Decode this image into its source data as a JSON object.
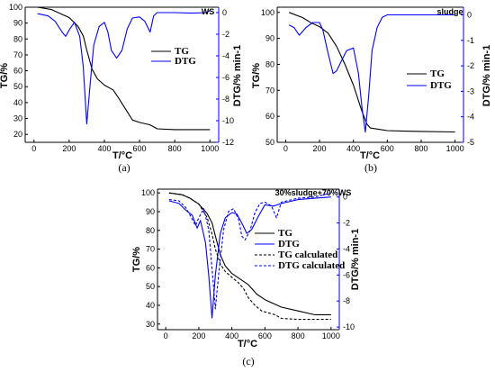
{
  "chart_data": [
    {
      "type": "line",
      "panel_label": "(a)",
      "annotation": "WS",
      "xlabel": "T/°C",
      "ylabel_left": "TG/%",
      "ylabel_right": "DTG/% min-1",
      "xlim": [
        -50,
        1050
      ],
      "ylim_left": [
        15,
        100
      ],
      "ylim_right": [
        -12,
        0.5
      ],
      "xticks": [
        0,
        200,
        400,
        600,
        800,
        1000
      ],
      "yticks_left": [
        20,
        30,
        40,
        50,
        60,
        70,
        80,
        90,
        100
      ],
      "yticks_right": [
        0,
        -2,
        -4,
        -6,
        -8,
        -10,
        -12
      ],
      "series": [
        {
          "name": "TG",
          "axis": "left",
          "color": "#000000",
          "dash": false,
          "x": [
            20,
            100,
            150,
            200,
            250,
            280,
            300,
            330,
            360,
            400,
            450,
            480,
            520,
            560,
            600,
            660,
            700,
            800,
            1000
          ],
          "y": [
            100,
            98.5,
            96,
            93.5,
            88,
            82,
            73,
            61,
            55,
            51,
            48,
            43,
            36,
            29,
            27.5,
            26,
            23.5,
            23,
            23
          ]
        },
        {
          "name": "DTG",
          "axis": "right",
          "color": "#0000ff",
          "dash": false,
          "x": [
            20,
            80,
            120,
            160,
            180,
            200,
            230,
            260,
            280,
            300,
            320,
            340,
            370,
            400,
            420,
            440,
            470,
            500,
            530,
            560,
            600,
            630,
            660,
            680,
            700,
            800,
            900,
            980,
            1000
          ],
          "y": [
            -0.1,
            -0.3,
            -0.8,
            -1.8,
            -2.2,
            -1.6,
            -0.9,
            -2.2,
            -5,
            -10.3,
            -6.5,
            -3,
            -1.3,
            -0.9,
            -1.8,
            -3.5,
            -4.2,
            -3.5,
            -1.5,
            -0.5,
            -0.4,
            -0.8,
            -1.8,
            -0.3,
            0,
            0,
            -0.05,
            0,
            0.2
          ]
        }
      ]
    },
    {
      "type": "line",
      "panel_label": "(b)",
      "annotation": "sludge",
      "xlabel": "T/°C",
      "ylabel_left": "TG/%",
      "ylabel_right": "DTG/% min-1",
      "xlim": [
        -50,
        1050
      ],
      "ylim_left": [
        50,
        102
      ],
      "ylim_right": [
        -5,
        0.3
      ],
      "xticks": [
        0,
        200,
        400,
        600,
        800,
        1000
      ],
      "yticks_left": [
        50,
        60,
        70,
        80,
        90,
        100
      ],
      "yticks_right": [
        0,
        -1,
        -2,
        -3,
        -4,
        -5
      ],
      "series": [
        {
          "name": "TG",
          "axis": "left",
          "color": "#000000",
          "dash": false,
          "x": [
            20,
            100,
            150,
            200,
            250,
            300,
            350,
            400,
            450,
            480,
            500,
            550,
            600,
            700,
            800,
            1000
          ],
          "y": [
            100,
            98,
            96,
            94.5,
            92,
            87,
            80,
            72,
            62,
            57,
            55.5,
            55,
            54.5,
            54.3,
            54.2,
            54
          ]
        },
        {
          "name": "DTG",
          "axis": "right",
          "color": "#0000ff",
          "dash": false,
          "x": [
            20,
            50,
            80,
            120,
            160,
            200,
            220,
            250,
            280,
            300,
            330,
            360,
            400,
            430,
            450,
            470,
            490,
            510,
            540,
            570,
            600,
            700,
            800,
            900,
            1000
          ],
          "y": [
            -0.4,
            -0.5,
            -0.8,
            -0.5,
            -0.3,
            -0.3,
            -0.6,
            -1.5,
            -2.3,
            -2.2,
            -1.8,
            -1.4,
            -1.3,
            -2.3,
            -3.6,
            -4.6,
            -3.2,
            -1.4,
            -0.5,
            -0.1,
            0,
            0,
            0,
            0,
            0
          ]
        }
      ]
    },
    {
      "type": "line",
      "panel_label": "(c)",
      "annotation": "30%sludge+70%WS",
      "xlabel": "T/°C",
      "ylabel_left": "TG/%",
      "ylabel_right": "DTG/% min-1",
      "xlim": [
        -50,
        1050
      ],
      "ylim_left": [
        27,
        102
      ],
      "ylim_right": [
        -10.2,
        0.6
      ],
      "xticks": [
        0,
        200,
        400,
        600,
        800,
        1000
      ],
      "yticks_left": [
        30,
        40,
        50,
        60,
        70,
        80,
        90,
        100
      ],
      "yticks_right": [
        0,
        -2,
        -4,
        -6,
        -8,
        -10
      ],
      "series": [
        {
          "name": "TG",
          "axis": "left",
          "color": "#000000",
          "dash": false,
          "x": [
            20,
            100,
            150,
            200,
            250,
            280,
            300,
            330,
            360,
            400,
            450,
            500,
            550,
            600,
            650,
            700,
            800,
            900,
            1000
          ],
          "y": [
            100,
            99,
            97,
            94,
            89,
            84,
            77,
            67,
            61,
            57,
            54,
            51,
            46,
            43,
            41,
            39,
            37,
            35,
            35
          ]
        },
        {
          "name": "DTG",
          "axis": "right",
          "color": "#0000ff",
          "dash": false,
          "x": [
            20,
            80,
            120,
            160,
            190,
            210,
            240,
            260,
            280,
            300,
            330,
            360,
            400,
            430,
            460,
            490,
            520,
            560,
            600,
            650,
            700,
            800,
            900,
            1000
          ],
          "y": [
            -0.3,
            -0.5,
            -1,
            -1.4,
            -2.4,
            -1.8,
            -3.5,
            -6,
            -9.3,
            -6,
            -2.8,
            -1.6,
            -1.2,
            -1.3,
            -2,
            -2.8,
            -2.5,
            -1.5,
            -0.6,
            -0.7,
            -0.5,
            -0.2,
            -0.1,
            0
          ]
        },
        {
          "name": "TG calculated",
          "axis": "left",
          "color": "#000000",
          "dash": true,
          "x": [
            20,
            100,
            150,
            200,
            250,
            280,
            300,
            330,
            360,
            400,
            440,
            470,
            500,
            540,
            580,
            620,
            660,
            700,
            800,
            900,
            1000
          ],
          "y": [
            100,
            99,
            97,
            94,
            87,
            78,
            70,
            62,
            58,
            55,
            52,
            49,
            44,
            40,
            37,
            36,
            35,
            33,
            32.5,
            32.5,
            32.5
          ]
        },
        {
          "name": "DTG calculated",
          "axis": "right",
          "color": "#0000ff",
          "dash": true,
          "x": [
            20,
            80,
            120,
            160,
            180,
            200,
            230,
            260,
            280,
            300,
            320,
            350,
            380,
            410,
            440,
            460,
            480,
            510,
            540,
            570,
            600,
            640,
            670,
            700,
            800,
            900,
            1000
          ],
          "y": [
            -0.2,
            -0.3,
            -0.8,
            -1.7,
            -2.2,
            -1.6,
            -0.9,
            -2.5,
            -5.5,
            -8.6,
            -6,
            -2.5,
            -1.1,
            -0.9,
            -1.7,
            -3,
            -3.3,
            -2.6,
            -1.2,
            -0.5,
            -0.4,
            -0.7,
            -1.6,
            -0.4,
            -0.1,
            0,
            0.3
          ]
        }
      ]
    }
  ]
}
